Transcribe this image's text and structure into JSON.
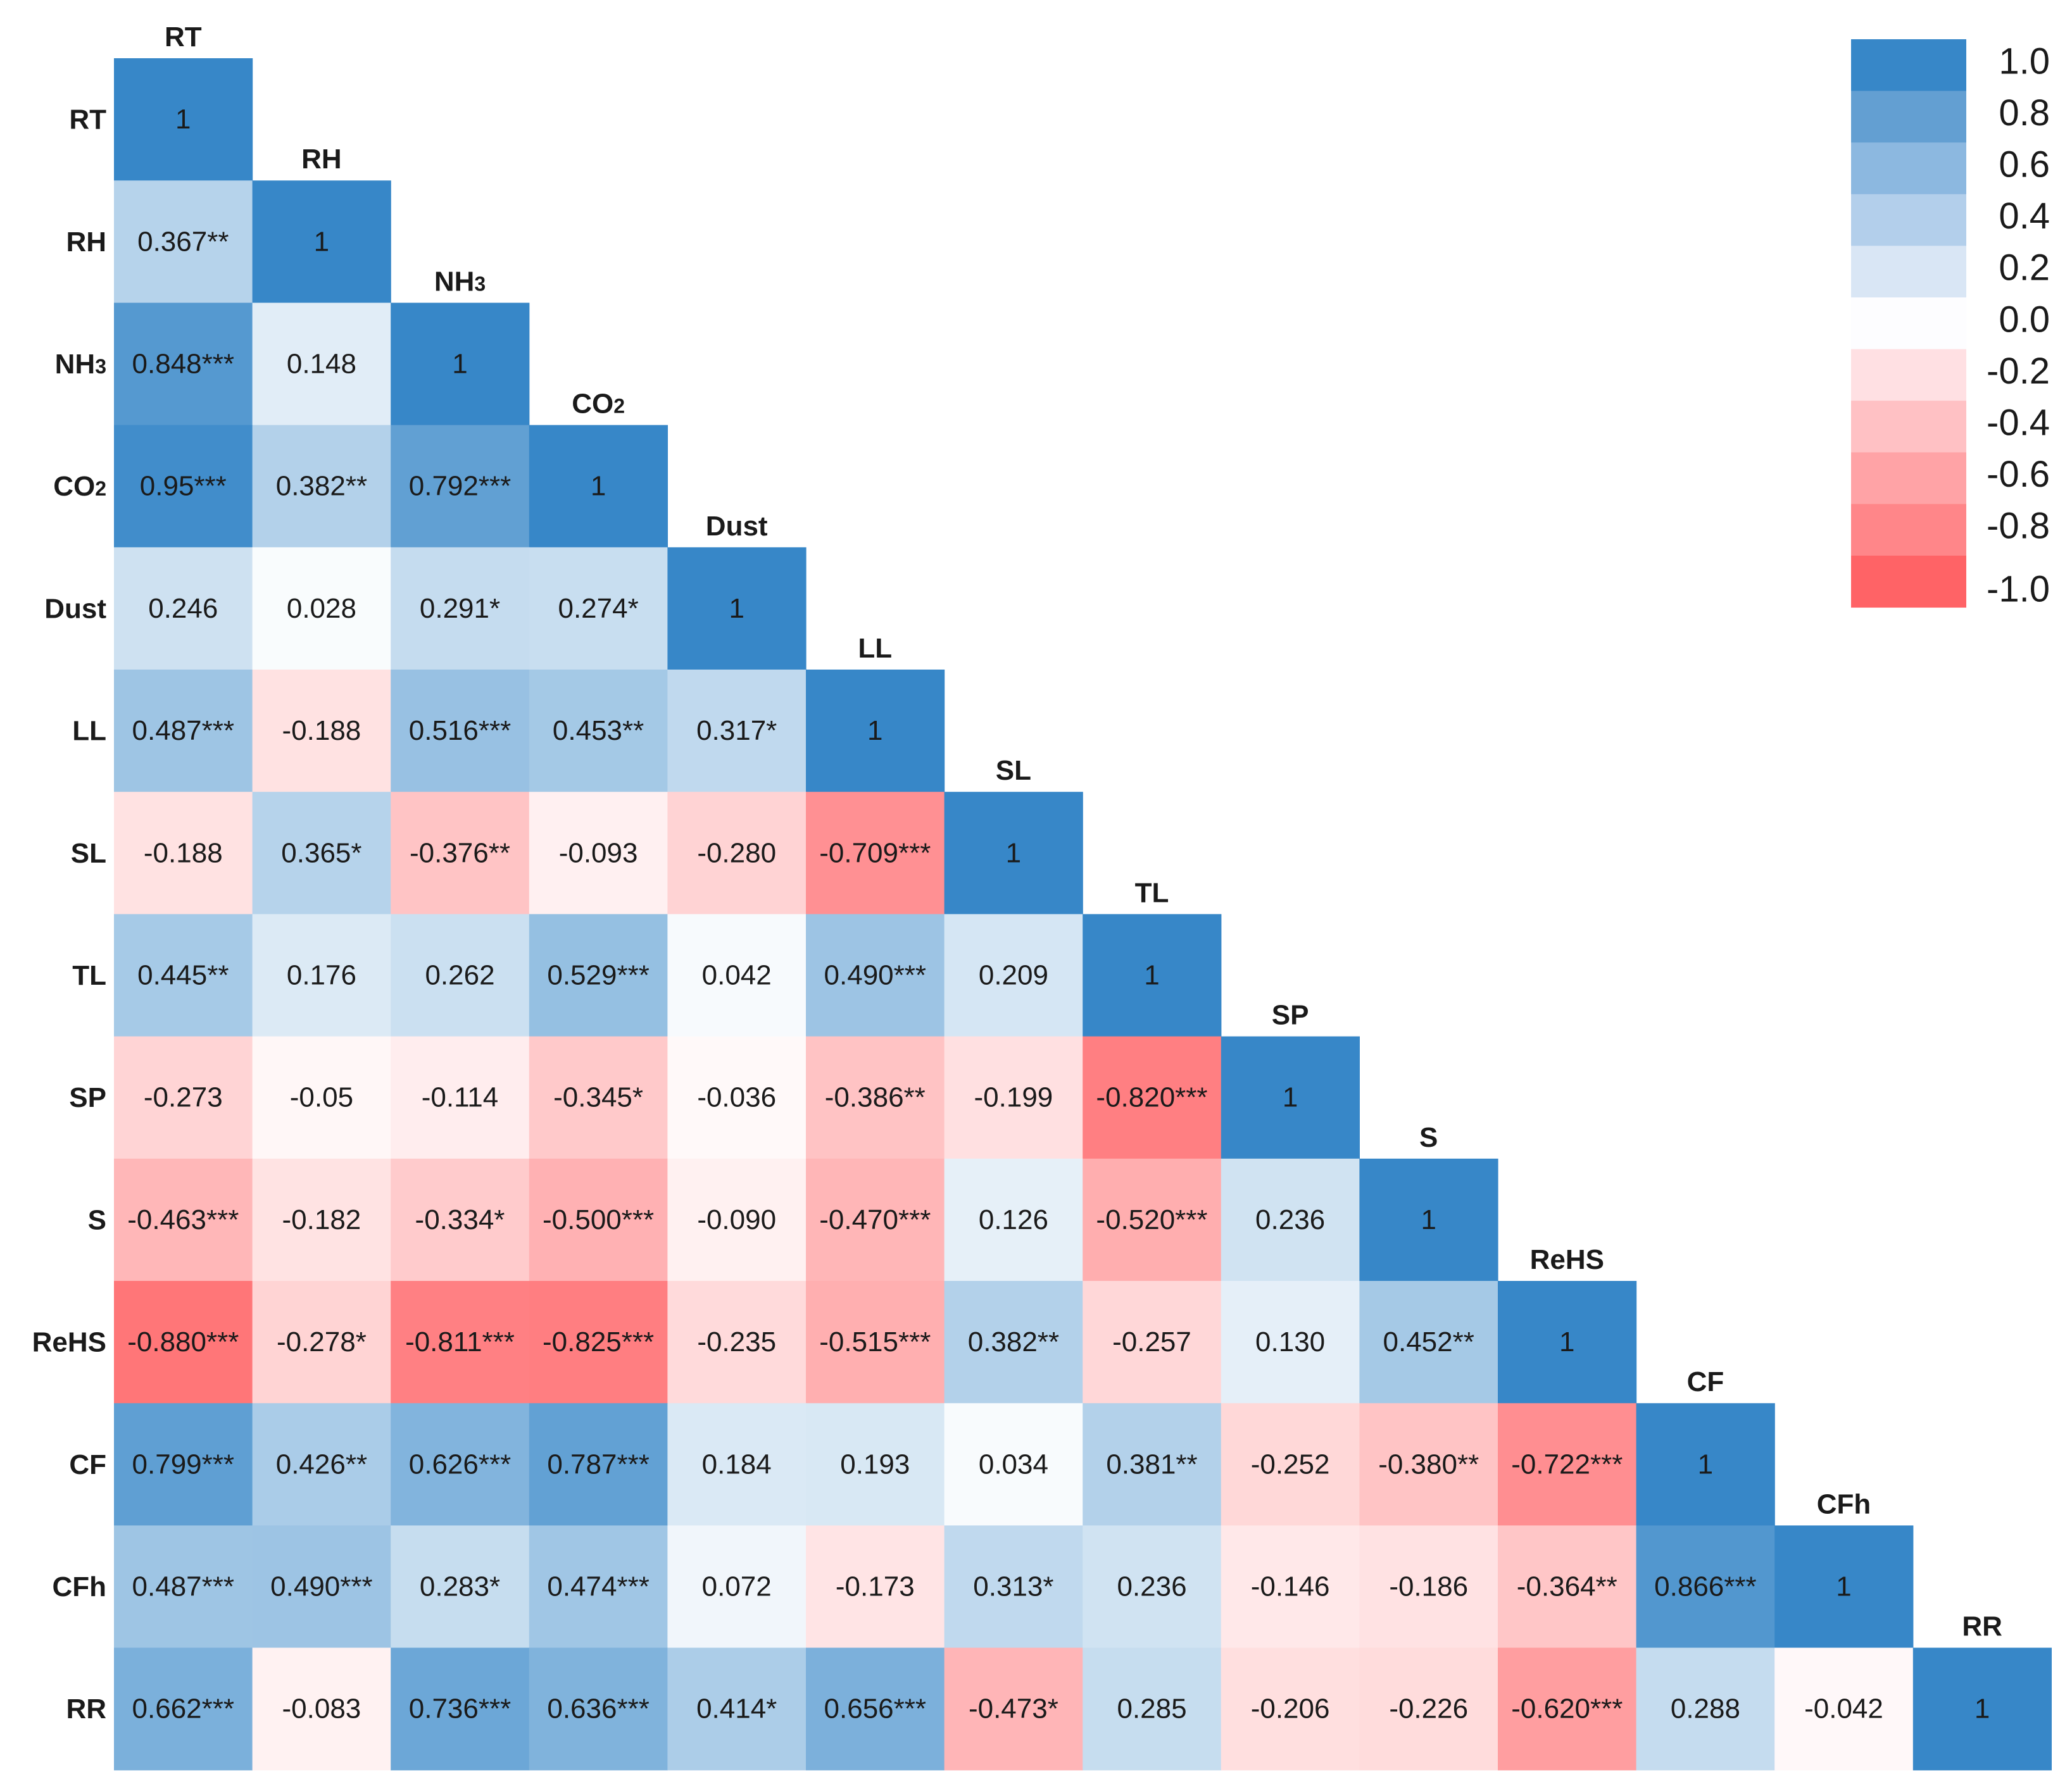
{
  "chart_data": {
    "type": "heatmap",
    "title": "",
    "variables": [
      "RT",
      "RH",
      "NH3",
      "CO2",
      "Dust",
      "LL",
      "SL",
      "TL",
      "SP",
      "S",
      "ReHS",
      "CF",
      "CFh",
      "RR"
    ],
    "variable_labels": [
      {
        "main": "RT",
        "sub": ""
      },
      {
        "main": "RH",
        "sub": ""
      },
      {
        "main": "NH",
        "sub": "3"
      },
      {
        "main": "CO",
        "sub": "2"
      },
      {
        "main": "Dust",
        "sub": ""
      },
      {
        "main": "LL",
        "sub": ""
      },
      {
        "main": "SL",
        "sub": ""
      },
      {
        "main": "TL",
        "sub": ""
      },
      {
        "main": "SP",
        "sub": ""
      },
      {
        "main": "S",
        "sub": ""
      },
      {
        "main": "ReHS",
        "sub": ""
      },
      {
        "main": "CF",
        "sub": ""
      },
      {
        "main": "CFh",
        "sub": ""
      },
      {
        "main": "RR",
        "sub": ""
      }
    ],
    "matrix_values": [
      [
        1
      ],
      [
        0.367,
        1
      ],
      [
        0.848,
        0.148,
        1
      ],
      [
        0.95,
        0.382,
        0.792,
        1
      ],
      [
        0.246,
        0.028,
        0.291,
        0.274,
        1
      ],
      [
        0.487,
        -0.188,
        0.516,
        0.453,
        0.317,
        1
      ],
      [
        -0.188,
        0.365,
        -0.376,
        -0.093,
        -0.28,
        -0.709,
        1
      ],
      [
        0.445,
        0.176,
        0.262,
        0.529,
        0.042,
        0.49,
        0.209,
        1
      ],
      [
        -0.273,
        -0.05,
        -0.114,
        -0.345,
        -0.036,
        -0.386,
        -0.199,
        -0.82,
        1
      ],
      [
        -0.463,
        -0.182,
        -0.334,
        -0.5,
        -0.09,
        -0.47,
        0.126,
        -0.52,
        0.236,
        1
      ],
      [
        -0.88,
        -0.278,
        -0.811,
        -0.825,
        -0.235,
        -0.515,
        0.382,
        -0.257,
        0.13,
        0.452,
        1
      ],
      [
        0.799,
        0.426,
        0.626,
        0.787,
        0.184,
        0.193,
        0.034,
        0.381,
        -0.252,
        -0.38,
        -0.722,
        1
      ],
      [
        0.487,
        0.49,
        0.283,
        0.474,
        0.072,
        -0.173,
        0.313,
        0.236,
        -0.146,
        -0.186,
        -0.364,
        0.866,
        1
      ],
      [
        0.662,
        -0.083,
        0.736,
        0.636,
        0.414,
        0.656,
        -0.473,
        0.285,
        -0.206,
        -0.226,
        -0.62,
        0.288,
        -0.042,
        1
      ]
    ],
    "matrix_labels": [
      [
        "1"
      ],
      [
        "0.367**",
        "1"
      ],
      [
        "0.848***",
        "0.148",
        "1"
      ],
      [
        "0.95***",
        "0.382**",
        "0.792***",
        "1"
      ],
      [
        "0.246",
        "0.028",
        "0.291*",
        "0.274*",
        "1"
      ],
      [
        "0.487***",
        "-0.188",
        "0.516***",
        "0.453**",
        "0.317*",
        "1"
      ],
      [
        "-0.188",
        "0.365*",
        "-0.376**",
        "-0.093",
        "-0.280",
        "-0.709***",
        "1"
      ],
      [
        "0.445**",
        "0.176",
        "0.262",
        "0.529***",
        "0.042",
        "0.490***",
        "0.209",
        "1"
      ],
      [
        "-0.273",
        "-0.05",
        "-0.114",
        "-0.345*",
        "-0.036",
        "-0.386**",
        "-0.199",
        "-0.820***",
        "1"
      ],
      [
        "-0.463***",
        "-0.182",
        "-0.334*",
        "-0.500***",
        "-0.090",
        "-0.470***",
        "0.126",
        "-0.520***",
        "0.236",
        "1"
      ],
      [
        "-0.880***",
        "-0.278*",
        "-0.811***",
        "-0.825***",
        "-0.235",
        "-0.515***",
        "0.382**",
        "-0.257",
        "0.130",
        "0.452**",
        "1"
      ],
      [
        "0.799***",
        "0.426**",
        "0.626***",
        "0.787***",
        "0.184",
        "0.193",
        "0.034",
        "0.381**",
        "-0.252",
        "-0.380**",
        "-0.722***",
        "1"
      ],
      [
        "0.487***",
        "0.490***",
        "0.283*",
        "0.474***",
        "0.072",
        "-0.173",
        "0.313*",
        "0.236",
        "-0.146",
        "-0.186",
        "-0.364**",
        "0.866***",
        "1"
      ],
      [
        "0.662***",
        "-0.083",
        "0.736***",
        "0.636***",
        "0.414*",
        "0.656***",
        "-0.473*",
        "0.285",
        "-0.206",
        "-0.226",
        "-0.620***",
        "0.288",
        "-0.042",
        "1"
      ]
    ],
    "color_scale": {
      "negative_max_color": "#ff6366",
      "zero_color": "#ffffff",
      "positive_max_color": "#3787c8"
    },
    "legend": {
      "position": "top-right",
      "ticks": [
        "1.0",
        "0.8",
        "0.6",
        "0.4",
        "0.2",
        "0.0",
        "-0.2",
        "-0.4",
        "-0.6",
        "-0.8",
        "-1.0"
      ],
      "bins": [
        {
          "value": 1.0,
          "color": "#3787c8"
        },
        {
          "value": 0.8,
          "color": "#639fd2"
        },
        {
          "value": 0.6,
          "color": "#8cb8e0"
        },
        {
          "value": 0.4,
          "color": "#b3cfeb"
        },
        {
          "value": 0.2,
          "color": "#d9e6f5"
        },
        {
          "value": 0.0,
          "color": "#fdfdff"
        },
        {
          "value": -0.2,
          "color": "#ffe0e3"
        },
        {
          "value": -0.4,
          "color": "#ffc1c4"
        },
        {
          "value": -0.6,
          "color": "#ffa3a6"
        },
        {
          "value": -0.8,
          "color": "#ff8689"
        },
        {
          "value": -1.0,
          "color": "#ff6366"
        }
      ]
    }
  }
}
